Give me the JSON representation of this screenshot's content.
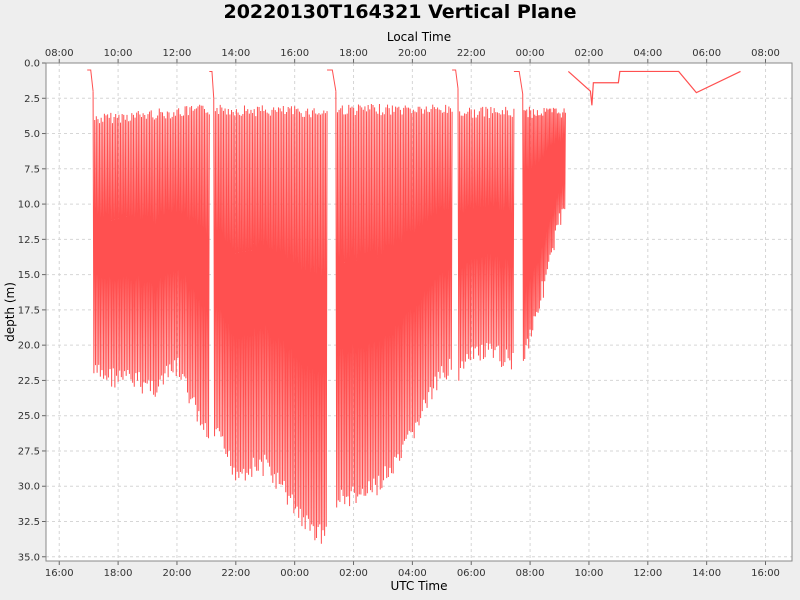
{
  "chart_data": {
    "type": "line",
    "title": "20220130T164321 Vertical Plane",
    "xlabel": "UTC Time",
    "x2label": "Local Time",
    "ylabel": "depth (m)",
    "xlim_hours": [
      15.55,
      40.9
    ],
    "ylim": [
      0,
      35.3
    ],
    "y_inverted": true,
    "grid": true,
    "line_color": "#ff5050",
    "x_tick_labels": [
      "16:00",
      "18:00",
      "20:00",
      "22:00",
      "00:00",
      "02:00",
      "04:00",
      "06:00",
      "08:00",
      "10:00",
      "12:00",
      "14:00",
      "16:00"
    ],
    "x2_tick_labels": [
      "08:00",
      "10:00",
      "12:00",
      "14:00",
      "16:00",
      "18:00",
      "20:00",
      "22:00",
      "00:00",
      "02:00",
      "04:00",
      "06:00",
      "08:00"
    ],
    "y_tick_labels": [
      "0.0",
      "2.5",
      "5.0",
      "7.5",
      "10.0",
      "12.5",
      "15.0",
      "17.5",
      "20.0",
      "22.5",
      "25.0",
      "27.5",
      "30.0",
      "32.5",
      "35.0"
    ],
    "segments": [
      {
        "t0": 16.95,
        "t1": 17.15,
        "start_depth": 0.5,
        "start_top": 0.5,
        "end_top": 2.0
      },
      {
        "t0": 17.15,
        "t1": 21.1,
        "start_depth": 2.0,
        "dives": 72,
        "bottom": [
          [
            17.15,
            22.0
          ],
          [
            18.5,
            22.5
          ],
          [
            19.3,
            23.0
          ],
          [
            20.0,
            21.5
          ],
          [
            20.5,
            24.0
          ],
          [
            21.1,
            27.0
          ]
        ],
        "top": [
          [
            17.15,
            4.0
          ],
          [
            21.1,
            3.3
          ]
        ]
      },
      {
        "t0": 21.1,
        "t1": 21.25,
        "start_depth": 0.6,
        "start_top": 0.6,
        "end_top": 2.5
      },
      {
        "t0": 21.25,
        "t1": 25.1,
        "start_depth": 2.5,
        "dives": 70,
        "bottom": [
          [
            21.25,
            26.0
          ],
          [
            22.0,
            29.0
          ],
          [
            23.0,
            28.5
          ],
          [
            23.7,
            30.5
          ],
          [
            24.5,
            33.0
          ],
          [
            25.1,
            33.5
          ]
        ],
        "top": [
          [
            21.25,
            3.3
          ],
          [
            25.1,
            3.5
          ]
        ]
      },
      {
        "t0": 25.1,
        "t1": 25.4,
        "start_depth": 0.5,
        "start_top": 0.5,
        "end_top": 2.0
      },
      {
        "t0": 25.4,
        "t1": 29.35,
        "start_depth": 2.0,
        "dives": 72,
        "bottom": [
          [
            25.4,
            31.0
          ],
          [
            26.5,
            30.5
          ],
          [
            27.5,
            28.5
          ],
          [
            28.5,
            24.0
          ],
          [
            29.35,
            21.0
          ]
        ],
        "top": [
          [
            25.4,
            3.3
          ],
          [
            29.35,
            3.3
          ]
        ]
      },
      {
        "t0": 29.35,
        "t1": 29.55,
        "start_depth": 0.5,
        "start_top": 0.5,
        "end_top": 1.8
      },
      {
        "t0": 29.55,
        "t1": 31.45,
        "start_depth": 1.8,
        "dives": 34,
        "bottom": [
          [
            29.55,
            22.0
          ],
          [
            30.2,
            20.5
          ],
          [
            31.45,
            21.0
          ]
        ],
        "top": [
          [
            29.55,
            3.5
          ],
          [
            31.45,
            3.5
          ]
        ]
      },
      {
        "t0": 31.45,
        "t1": 31.75,
        "start_depth": 0.6,
        "start_top": 0.6,
        "end_top": 2.2
      },
      {
        "t0": 31.75,
        "t1": 33.2,
        "start_depth": 2.2,
        "dives": 32,
        "bottom": [
          [
            31.75,
            21.0
          ],
          [
            32.3,
            17.0
          ],
          [
            32.7,
            14.0
          ],
          [
            33.2,
            9.5
          ]
        ],
        "top": [
          [
            31.75,
            3.5
          ],
          [
            33.2,
            3.5
          ]
        ]
      }
    ],
    "surface_track": [
      [
        33.3,
        0.6
      ],
      [
        34.05,
        2.0
      ],
      [
        34.1,
        3.0
      ],
      [
        34.15,
        1.4
      ],
      [
        35.0,
        1.4
      ],
      [
        35.05,
        0.6
      ],
      [
        37.05,
        0.6
      ],
      [
        37.65,
        2.1
      ],
      [
        39.15,
        0.6
      ]
    ]
  }
}
